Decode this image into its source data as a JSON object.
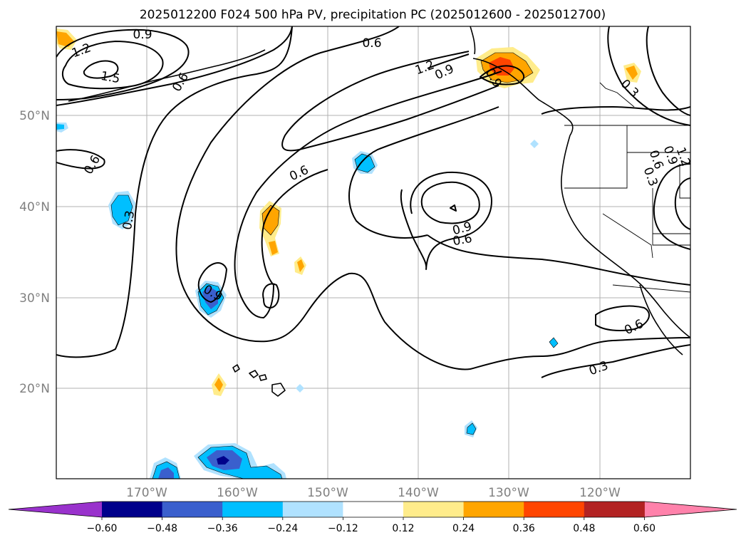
{
  "title": "2025012200 F024 500 hPa PV, precipitation PC (2025012600 - 2025012700)",
  "lat_labels": [
    "50°N",
    "40°N",
    "30°N",
    "20°N"
  ],
  "lon_labels": [
    "170°W",
    "160°W",
    "150°W",
    "140°W",
    "130°W",
    "120°W"
  ],
  "contour_labels": [
    "0.9",
    "1.2",
    "1.5",
    "0.6",
    "0.6",
    "0.3",
    "0.6",
    "1.2",
    "0.9",
    "0.6",
    "0.9",
    "0.6",
    "0.9",
    "0.3",
    "0.3",
    "0.6",
    "0.9",
    "1.2",
    "0.6",
    "0.3",
    "0.9"
  ],
  "colorbar": {
    "ticks": [
      "−0.60",
      "−0.48",
      "−0.36",
      "−0.24",
      "−0.12",
      "0.12",
      "0.24",
      "0.36",
      "0.48",
      "0.60"
    ],
    "colors": [
      "#9932cc",
      "#00008b",
      "#3a5fcd",
      "#00bfff",
      "#b0e2ff",
      "#ffffff",
      "#ffec8b",
      "#ffa500",
      "#ff4500",
      "#b22222",
      "#ff82ab"
    ]
  },
  "colors": {
    "grid": "#b0b0b0",
    "axis_labels": "#808080",
    "contour": "#000000"
  }
}
